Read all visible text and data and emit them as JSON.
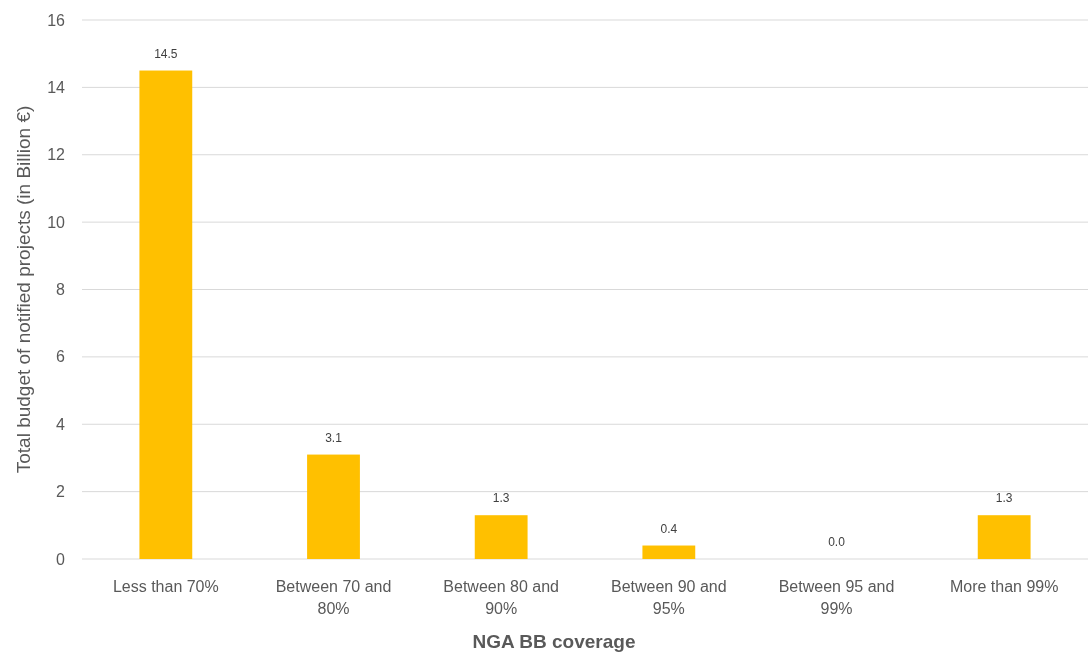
{
  "chart_data": {
    "type": "bar",
    "xlabel": "NGA BB coverage",
    "ylabel": "Total budget of notified projects (in Billion €)",
    "categories": [
      "Less than 70%",
      "Between 70 and 80%",
      "Between 80 and 90%",
      "Between 90 and 95%",
      "Between 95 and 99%",
      "More than 99%"
    ],
    "values": [
      14.5,
      3.1,
      1.3,
      0.4,
      0.0,
      1.3
    ],
    "value_labels": [
      "14.5",
      "3.1",
      "1.3",
      "0.4",
      "0.0",
      "1.3"
    ],
    "color": "#ffc000",
    "ylim": [
      0,
      16
    ],
    "yticks": [
      0,
      2,
      4,
      6,
      8,
      10,
      12,
      14,
      16
    ],
    "grid": "y"
  }
}
